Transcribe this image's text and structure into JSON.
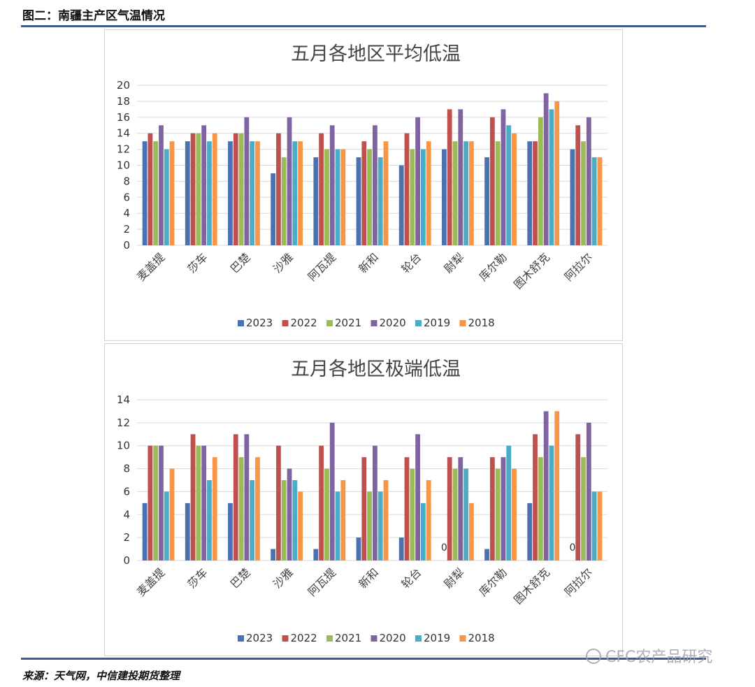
{
  "figure_title": "图二：南疆主产区气温情况",
  "source": "来源：天气网，中信建投期货整理",
  "watermark": "CFC农产品研究",
  "colors": {
    "2023": "#4a72b0",
    "2022": "#c0504d",
    "2021": "#9bbb59",
    "2020": "#8064a2",
    "2019": "#4bacc6",
    "2018": "#f79646",
    "rule": "#3f5a8f",
    "grid": "#d9d9d9"
  },
  "chart_data": [
    {
      "type": "bar",
      "title": "五月各地区平均低温",
      "categories": [
        "麦盖提",
        "莎车",
        "巴楚",
        "沙雅",
        "阿瓦提",
        "新和",
        "轮台",
        "尉犁",
        "库尔勒",
        "图木舒克",
        "阿拉尔"
      ],
      "ylim": [
        0,
        20
      ],
      "yticks": [
        0,
        2,
        4,
        6,
        8,
        10,
        12,
        14,
        16,
        18,
        20
      ],
      "grid": true,
      "legend_position": "bottom",
      "series": [
        {
          "name": "2023",
          "values": [
            13,
            13,
            13,
            9,
            11,
            11,
            10,
            12,
            11,
            13,
            12
          ]
        },
        {
          "name": "2022",
          "values": [
            14,
            14,
            14,
            14,
            14,
            13,
            14,
            17,
            16,
            13,
            15
          ]
        },
        {
          "name": "2021",
          "values": [
            13,
            14,
            14,
            11,
            12,
            12,
            12,
            13,
            13,
            16,
            13
          ]
        },
        {
          "name": "2020",
          "values": [
            15,
            15,
            16,
            16,
            15,
            15,
            16,
            17,
            17,
            19,
            16
          ]
        },
        {
          "name": "2019",
          "values": [
            12,
            13,
            13,
            13,
            12,
            11,
            12,
            13,
            15,
            17,
            11
          ]
        },
        {
          "name": "2018",
          "values": [
            13,
            14,
            13,
            13,
            12,
            13,
            13,
            13,
            14,
            18,
            11
          ]
        }
      ]
    },
    {
      "type": "bar",
      "title": "五月各地区极端低温",
      "categories": [
        "麦盖提",
        "莎车",
        "巴楚",
        "沙雅",
        "阿瓦提",
        "新和",
        "轮台",
        "尉犁",
        "库尔勒",
        "图木舒克",
        "阿拉尔"
      ],
      "ylim": [
        0,
        14
      ],
      "yticks": [
        0,
        2,
        4,
        6,
        8,
        10,
        12,
        14
      ],
      "grid": true,
      "legend_position": "bottom",
      "data_labels": [
        {
          "series": "2023",
          "category": "尉犁",
          "text": "0"
        },
        {
          "series": "2023",
          "category": "阿拉尔",
          "text": "0"
        }
      ],
      "series": [
        {
          "name": "2023",
          "values": [
            5,
            5,
            5,
            1,
            1,
            2,
            2,
            0,
            1,
            5,
            0
          ]
        },
        {
          "name": "2022",
          "values": [
            10,
            11,
            11,
            10,
            10,
            9,
            9,
            9,
            9,
            11,
            11
          ]
        },
        {
          "name": "2021",
          "values": [
            10,
            10,
            9,
            7,
            8,
            6,
            8,
            8,
            8,
            9,
            9
          ]
        },
        {
          "name": "2020",
          "values": [
            10,
            10,
            11,
            8,
            12,
            10,
            11,
            9,
            9,
            13,
            12
          ]
        },
        {
          "name": "2019",
          "values": [
            6,
            7,
            7,
            7,
            6,
            6,
            5,
            8,
            10,
            10,
            6
          ]
        },
        {
          "name": "2018",
          "values": [
            8,
            9,
            9,
            6,
            7,
            7,
            7,
            5,
            8,
            13,
            6
          ]
        }
      ]
    }
  ]
}
